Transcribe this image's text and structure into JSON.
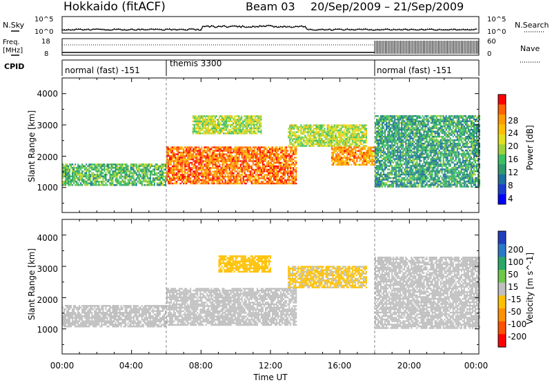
{
  "header": {
    "station": "Hokkaido (fitACF)",
    "beam": "Beam 03",
    "date_range": "20/Sep/2009 – 21/Sep/2009"
  },
  "top_panels": {
    "nsky_label": "N.Sky",
    "nsky_ticks": [
      "10^5",
      "10^0"
    ],
    "nsearch_label": "N.Search",
    "nsearch_ticks": [
      "10^5",
      "10^0"
    ],
    "freq_label": "Freq.",
    "freq_unit": "[MHz]",
    "freq_ticks": [
      "18",
      "8"
    ],
    "nave_label": "Nave",
    "nave_ticks": [
      "60",
      "0"
    ],
    "cpid_label": "CPID",
    "cpid_segments": [
      {
        "label": "normal (fast) -151",
        "start_h": 0,
        "end_h": 6
      },
      {
        "label": "themis 3300",
        "start_h": 6,
        "end_h": 18
      },
      {
        "label": "normal (fast) -151",
        "start_h": 18,
        "end_h": 24
      }
    ]
  },
  "power_panel": {
    "ylabel": "Slant Range [km]",
    "yticks": [
      "4000",
      "3000",
      "2000",
      "1000"
    ],
    "colorbar_label": "Power [dB]",
    "colorbar_ticks": [
      "28",
      "24",
      "20",
      "16",
      "12",
      "8",
      "4"
    ],
    "colorbar_colors": [
      "#ff0000",
      "#ff6400",
      "#ff9d00",
      "#fdc000",
      "#e0e01e",
      "#9fd23c",
      "#3cc064",
      "#2e9a6e",
      "#1f6fa0",
      "#1a3fd0",
      "#0000ff"
    ]
  },
  "velocity_panel": {
    "ylabel": "Slant Range [km]",
    "yticks": [
      "4000",
      "3000",
      "2000",
      "1000"
    ],
    "colorbar_label": "Velocity [m s^-1]",
    "colorbar_ticks": [
      "200",
      "100",
      "50",
      "15",
      "-15",
      "-50",
      "-100",
      "-200"
    ],
    "colorbar_colors": [
      "#1f3fbf",
      "#2a78c8",
      "#2aa86a",
      "#6ec84a",
      "#bfbfbf",
      "#ffc000",
      "#ff9100",
      "#ff5000",
      "#ff0000"
    ]
  },
  "chart_data": {
    "type": "heatmap",
    "title": "Hokkaido (fitACF) Beam 03 20/Sep/2009 – 21/Sep/2009",
    "xlabel": "Time UT",
    "x_ticks": [
      "00:00",
      "04:00",
      "08:00",
      "12:00",
      "16:00",
      "20:00",
      "00:00"
    ],
    "xlim_hours": [
      0,
      24
    ],
    "ylabel": "Slant Range [km]",
    "ylim_km": [
      200,
      4500
    ],
    "power_colorbar_range_db": [
      0,
      30
    ],
    "velocity_colorbar_range_ms": [
      -250,
      250
    ],
    "cpid_changes_hours": [
      6,
      18
    ],
    "power_echo_regions": [
      {
        "t_start": 0.0,
        "t_end": 6.0,
        "r_min": 1050,
        "r_max": 1750,
        "level_db": 12
      },
      {
        "t_start": 6.0,
        "t_end": 13.5,
        "r_min": 1100,
        "r_max": 2300,
        "level_db": 26
      },
      {
        "t_start": 7.5,
        "t_end": 11.5,
        "r_min": 2700,
        "r_max": 3300,
        "level_db": 16
      },
      {
        "t_start": 13.0,
        "t_end": 17.5,
        "r_min": 2300,
        "r_max": 3000,
        "level_db": 16
      },
      {
        "t_start": 15.5,
        "t_end": 18.0,
        "r_min": 1700,
        "r_max": 2300,
        "level_db": 24
      },
      {
        "t_start": 18.0,
        "t_end": 24.0,
        "r_min": 1000,
        "r_max": 3300,
        "level_db": 10
      }
    ],
    "velocity_echo_regions": [
      {
        "t_start": 0.0,
        "t_end": 6.0,
        "r_min": 1050,
        "r_max": 1750,
        "velocity_ms": 0
      },
      {
        "t_start": 6.0,
        "t_end": 13.5,
        "r_min": 1100,
        "r_max": 2300,
        "velocity_ms": 0
      },
      {
        "t_start": 9.0,
        "t_end": 12.0,
        "r_min": 2800,
        "r_max": 3300,
        "velocity_ms": -60
      },
      {
        "t_start": 13.0,
        "t_end": 17.5,
        "r_min": 2300,
        "r_max": 3000,
        "velocity_ms": -40
      },
      {
        "t_start": 18.0,
        "t_end": 24.0,
        "r_min": 1000,
        "r_max": 3300,
        "velocity_ms": 0
      }
    ]
  }
}
